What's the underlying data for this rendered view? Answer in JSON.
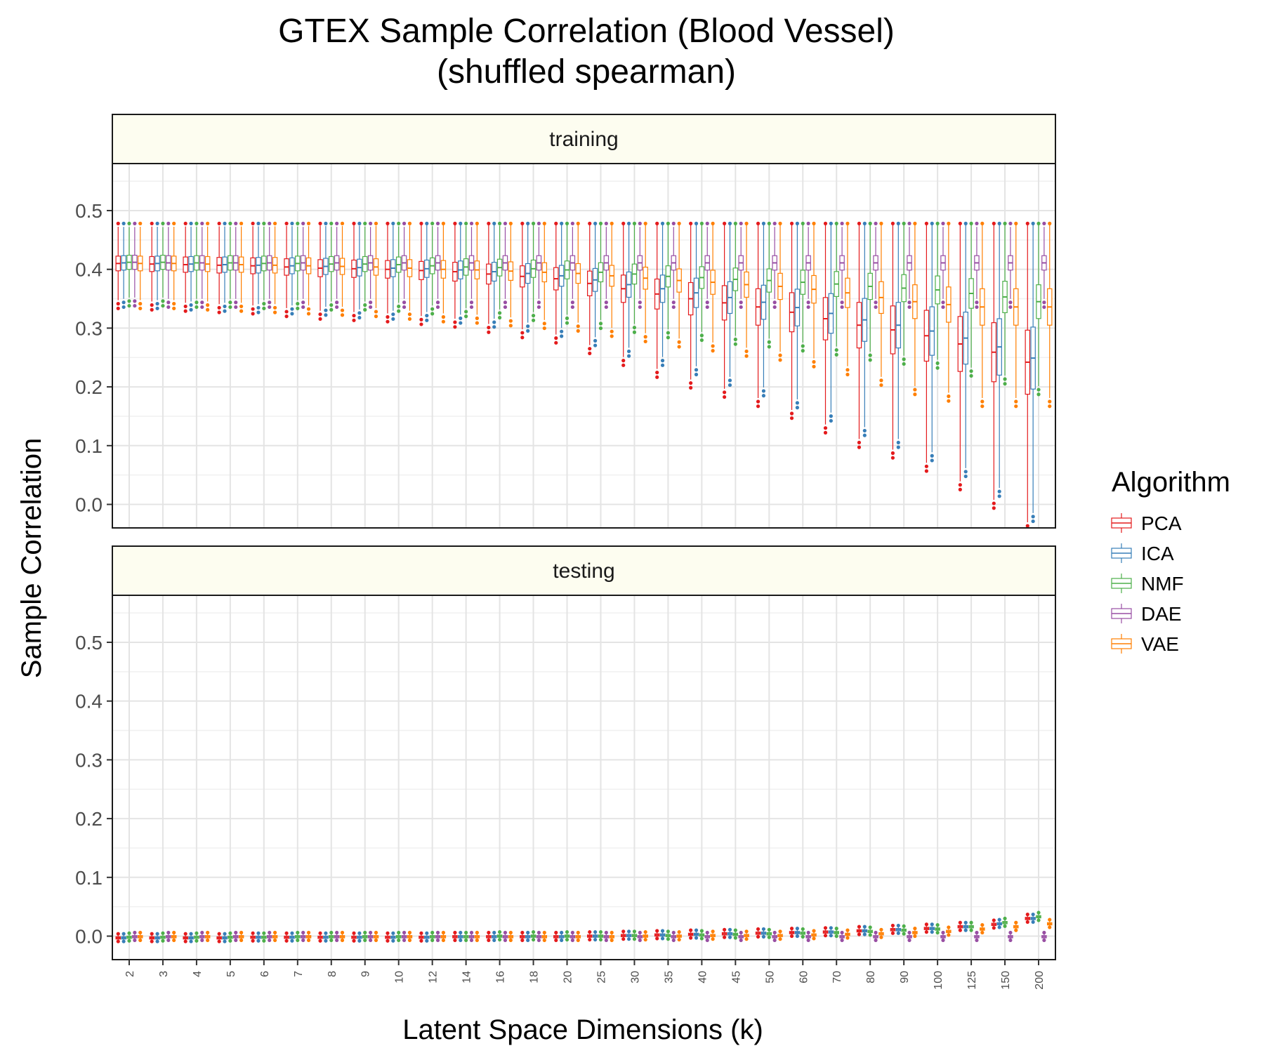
{
  "chart_data": {
    "type": "box",
    "title": "GTEX Sample Correlation (Blood Vessel)",
    "subtitle": "(shuffled spearman)",
    "xlabel": "Latent Space Dimensions (k)",
    "ylabel": "Sample Correlation",
    "ylim": [
      -0.04,
      0.58
    ],
    "yticks": [
      "0.0",
      "0.1",
      "0.2",
      "0.3",
      "0.4",
      "0.5"
    ],
    "grid": true,
    "legend_position": "right",
    "legend_title": "Algorithm",
    "categories": [
      "2",
      "3",
      "4",
      "5",
      "6",
      "7",
      "8",
      "9",
      "10",
      "12",
      "14",
      "16",
      "18",
      "20",
      "25",
      "30",
      "35",
      "40",
      "45",
      "50",
      "60",
      "70",
      "80",
      "90",
      "100",
      "125",
      "150",
      "200"
    ],
    "series": [
      {
        "name": "PCA",
        "color": "#E41A1C"
      },
      {
        "name": "ICA",
        "color": "#377EB8"
      },
      {
        "name": "NMF",
        "color": "#4DAF4A"
      },
      {
        "name": "DAE",
        "color": "#984EA3"
      },
      {
        "name": "VAE",
        "color": "#FF7F00"
      }
    ],
    "panels": [
      {
        "label": "training",
        "medians": {
          "PCA": [
            0.41,
            0.409,
            0.408,
            0.407,
            0.406,
            0.404,
            0.402,
            0.401,
            0.4,
            0.398,
            0.396,
            0.392,
            0.388,
            0.384,
            0.376,
            0.367,
            0.358,
            0.35,
            0.343,
            0.336,
            0.327,
            0.316,
            0.305,
            0.297,
            0.287,
            0.273,
            0.259,
            0.242
          ],
          "ICA": [
            0.411,
            0.41,
            0.409,
            0.408,
            0.407,
            0.406,
            0.405,
            0.403,
            0.402,
            0.401,
            0.399,
            0.396,
            0.393,
            0.389,
            0.382,
            0.374,
            0.367,
            0.36,
            0.352,
            0.344,
            0.335,
            0.325,
            0.314,
            0.305,
            0.295,
            0.283,
            0.268,
            0.249
          ],
          "NMF": [
            0.412,
            0.412,
            0.411,
            0.411,
            0.41,
            0.41,
            0.409,
            0.409,
            0.408,
            0.406,
            0.404,
            0.403,
            0.401,
            0.399,
            0.395,
            0.392,
            0.388,
            0.386,
            0.383,
            0.381,
            0.378,
            0.375,
            0.371,
            0.368,
            0.365,
            0.359,
            0.353,
            0.345
          ],
          "DAE": [
            0.412,
            0.411,
            0.411,
            0.411,
            0.411,
            0.411,
            0.411,
            0.411,
            0.411,
            0.411,
            0.411,
            0.411,
            0.411,
            0.411,
            0.411,
            0.411,
            0.411,
            0.411,
            0.411,
            0.411,
            0.411,
            0.411,
            0.411,
            0.411,
            0.411,
            0.411,
            0.411,
            0.411
          ],
          "VAE": [
            0.41,
            0.41,
            0.409,
            0.408,
            0.407,
            0.406,
            0.405,
            0.404,
            0.402,
            0.4,
            0.399,
            0.397,
            0.395,
            0.393,
            0.389,
            0.385,
            0.381,
            0.378,
            0.374,
            0.371,
            0.366,
            0.36,
            0.352,
            0.345,
            0.34,
            0.336,
            0.336,
            0.336
          ]
        }
      },
      {
        "label": "testing",
        "medians": {
          "PCA": [
            -0.003,
            -0.003,
            -0.003,
            -0.003,
            -0.002,
            -0.002,
            -0.002,
            -0.002,
            -0.002,
            -0.002,
            -0.001,
            -0.001,
            -0.001,
            -0.001,
            0.0,
            0.001,
            0.002,
            0.003,
            0.004,
            0.005,
            0.006,
            0.007,
            0.009,
            0.011,
            0.013,
            0.016,
            0.02,
            0.03
          ],
          "ICA": [
            -0.003,
            -0.003,
            -0.003,
            -0.003,
            -0.002,
            -0.002,
            -0.002,
            -0.002,
            -0.002,
            -0.002,
            -0.001,
            -0.001,
            -0.001,
            -0.001,
            0.0,
            0.001,
            0.002,
            0.003,
            0.004,
            0.005,
            0.006,
            0.007,
            0.009,
            0.011,
            0.013,
            0.016,
            0.021,
            0.03
          ],
          "NMF": [
            -0.002,
            -0.002,
            -0.002,
            -0.002,
            -0.002,
            -0.001,
            -0.001,
            -0.001,
            -0.001,
            -0.001,
            -0.001,
            0.0,
            0.0,
            0.0,
            0.0,
            0.001,
            0.001,
            0.002,
            0.003,
            0.004,
            0.005,
            0.006,
            0.008,
            0.01,
            0.012,
            0.016,
            0.023,
            0.033
          ],
          "DAE": [
            -0.001,
            -0.001,
            -0.001,
            -0.001,
            -0.001,
            -0.001,
            -0.001,
            -0.001,
            -0.001,
            -0.001,
            -0.001,
            -0.001,
            -0.001,
            -0.001,
            -0.001,
            -0.001,
            -0.001,
            -0.001,
            -0.001,
            -0.001,
            -0.001,
            -0.001,
            -0.001,
            -0.001,
            -0.001,
            -0.001,
            -0.001,
            -0.001
          ],
          "VAE": [
            -0.001,
            -0.001,
            -0.001,
            -0.001,
            -0.001,
            -0.001,
            -0.001,
            -0.001,
            -0.001,
            -0.001,
            -0.001,
            -0.001,
            -0.001,
            -0.001,
            -0.001,
            0.0,
            0.0,
            0.001,
            0.001,
            0.001,
            0.002,
            0.003,
            0.004,
            0.006,
            0.008,
            0.012,
            0.016,
            0.021
          ]
        }
      }
    ]
  }
}
